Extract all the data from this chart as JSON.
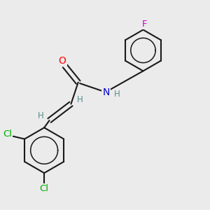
{
  "background_color": "#ebebeb",
  "bond_color": "#1a1a1a",
  "atom_colors": {
    "O": "#ff0000",
    "N": "#0000cc",
    "Cl": "#00aa00",
    "F": "#cc00cc",
    "H": "#5a8a8a"
  },
  "figsize": [
    3.0,
    3.0
  ],
  "dpi": 100,
  "xlim": [
    0,
    10
  ],
  "ylim": [
    0,
    10
  ]
}
